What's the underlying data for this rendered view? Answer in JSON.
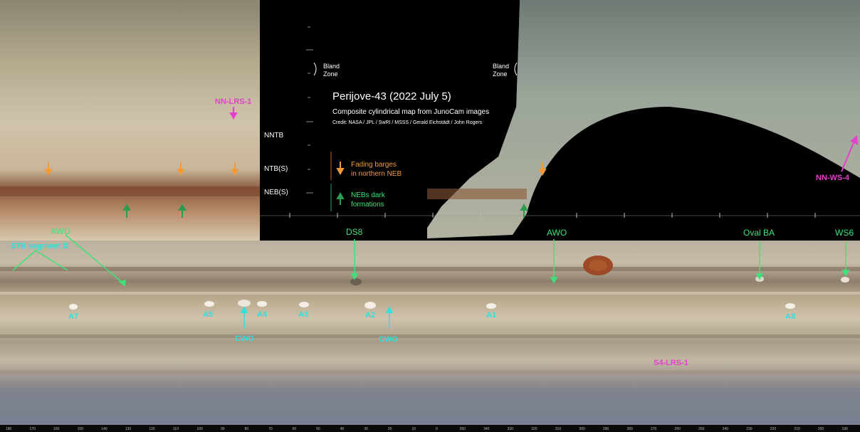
{
  "title": "Perijove-43 (2022 July 5)",
  "subtitle": "Composite cylindrical map from JunoCam images",
  "credit": "Credit: NASA / JPL / SwRI / MSSS / Gerald Eichstädt / John Rogers",
  "bands": {
    "nntb": "NNTB",
    "ntbs": "NTB(S)",
    "nebs": "NEB(S)",
    "bland_left_1": "Bland",
    "bland_left_2": "Zone",
    "bland_right_1": "Bland",
    "bland_right_2": "Zone"
  },
  "legend": {
    "orange_1": "Fading barges",
    "orange_2": "in northern NEB",
    "green_1": "NEBs dark",
    "green_2": "formations"
  },
  "features": {
    "nn_lrs": "NN-LRS-1",
    "nn_ws": "NN-WS-4",
    "awo_left": "AWO",
    "stb_segment": "STB segment D",
    "ds8": "DS8",
    "awo_right": "AWO",
    "oval_ba": "Oval BA",
    "ws6": "WS6",
    "a7": "A7",
    "a5": "A5",
    "a4": "A4",
    "a3": "A3",
    "a2": "A2",
    "a1": "A1",
    "a8": "A8",
    "cwo_left": "CWO",
    "cwo_right": "CWO",
    "s4_lrs": "S4-LRS-1"
  },
  "longitude_ticks": [
    "180",
    "170",
    "160",
    "150",
    "140",
    "130",
    "120",
    "110",
    "100",
    "90",
    "80",
    "70",
    "60",
    "50",
    "40",
    "30",
    "20",
    "10",
    "0",
    "350",
    "340",
    "330",
    "320",
    "310",
    "300",
    "290",
    "280",
    "270",
    "260",
    "250",
    "240",
    "230",
    "220",
    "210",
    "200",
    "190"
  ],
  "colors": {
    "label_green": "#3ee27a",
    "label_cyan": "#2fe0e0",
    "label_magenta": "#e53fd0",
    "label_orange": "#f09a3c"
  }
}
